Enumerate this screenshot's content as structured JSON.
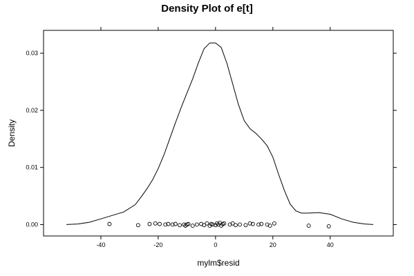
{
  "chart_data": {
    "type": "line",
    "title": "Density Plot of e[t]",
    "xlabel": "mylm$resid",
    "ylabel": "Density",
    "xlim": [
      -60,
      62
    ],
    "ylim": [
      -0.002,
      0.034
    ],
    "x_ticks": [
      -40,
      -20,
      0,
      20,
      40
    ],
    "x_tick_labels": [
      "-40",
      "-20",
      "0",
      "20",
      "40"
    ],
    "y_ticks": [
      0.0,
      0.01,
      0.02,
      0.03
    ],
    "y_tick_labels": [
      "0.00",
      "0.01",
      "0.02",
      "0.03"
    ],
    "grid": false,
    "series": [
      {
        "values_x": [
          -52,
          -48,
          -44,
          -40,
          -36,
          -32,
          -28,
          -26,
          -24,
          -22,
          -20,
          -18,
          -16,
          -14,
          -12,
          -10,
          -8,
          -6,
          -4,
          -2,
          0,
          2,
          4,
          6,
          8,
          10,
          12,
          14,
          16,
          18,
          20,
          22,
          24,
          26,
          28,
          30,
          32,
          36,
          40,
          44,
          48,
          52,
          55
        ],
        "values_y": [
          0.0,
          0.0001,
          0.0004,
          0.001,
          0.0016,
          0.0022,
          0.0035,
          0.0048,
          0.0062,
          0.0078,
          0.0098,
          0.0122,
          0.015,
          0.0178,
          0.0205,
          0.023,
          0.0255,
          0.0283,
          0.0308,
          0.0318,
          0.0318,
          0.031,
          0.0282,
          0.0246,
          0.021,
          0.0182,
          0.0168,
          0.016,
          0.015,
          0.0138,
          0.0118,
          0.0088,
          0.006,
          0.0036,
          0.0024,
          0.002,
          0.002,
          0.0021,
          0.0018,
          0.001,
          0.0004,
          0.0001,
          0.0
        ]
      }
    ],
    "rug_points": [
      {
        "x": -37,
        "y": 0.0001
      },
      {
        "x": -27,
        "y": -0.0001
      },
      {
        "x": -23,
        "y": 0.0001
      },
      {
        "x": -21,
        "y": 0.0002
      },
      {
        "x": -19.5,
        "y": 0.0001
      },
      {
        "x": -17.5,
        "y": 0.0
      },
      {
        "x": -16.5,
        "y": 0.0001
      },
      {
        "x": -15,
        "y": 0.0
      },
      {
        "x": -14,
        "y": 0.0001
      },
      {
        "x": -12.5,
        "y": -0.0001
      },
      {
        "x": -11,
        "y": 0.0
      },
      {
        "x": -10.5,
        "y": -0.0002
      },
      {
        "x": -10,
        "y": 0.0
      },
      {
        "x": -9.5,
        "y": 0.0001
      },
      {
        "x": -8,
        "y": -0.0002
      },
      {
        "x": -6.5,
        "y": 0.0
      },
      {
        "x": -5,
        "y": 0.0001
      },
      {
        "x": -4,
        "y": -0.0001
      },
      {
        "x": -3,
        "y": 0.0002
      },
      {
        "x": -2,
        "y": -0.0002
      },
      {
        "x": -1.5,
        "y": 0.0001
      },
      {
        "x": -1,
        "y": 0.0
      },
      {
        "x": 0,
        "y": -0.0001
      },
      {
        "x": 0.5,
        "y": 0.0002
      },
      {
        "x": 1,
        "y": 0.0
      },
      {
        "x": 1.5,
        "y": 0.0003
      },
      {
        "x": 2,
        "y": -0.0002
      },
      {
        "x": 2.5,
        "y": 0.0001
      },
      {
        "x": 3,
        "y": 0.0002
      },
      {
        "x": 5,
        "y": 0.0
      },
      {
        "x": 6,
        "y": 0.0002
      },
      {
        "x": 7,
        "y": -0.0001
      },
      {
        "x": 8.5,
        "y": 0.0
      },
      {
        "x": 10.5,
        "y": -0.0001
      },
      {
        "x": 12,
        "y": 0.0002
      },
      {
        "x": 13,
        "y": 0.0001
      },
      {
        "x": 15,
        "y": 0.0
      },
      {
        "x": 16,
        "y": 0.0001
      },
      {
        "x": 18,
        "y": 0.0
      },
      {
        "x": 19,
        "y": -0.0002
      },
      {
        "x": 20.5,
        "y": 0.0002
      },
      {
        "x": 32.5,
        "y": -0.0002
      },
      {
        "x": 39.5,
        "y": -0.0003
      }
    ]
  }
}
